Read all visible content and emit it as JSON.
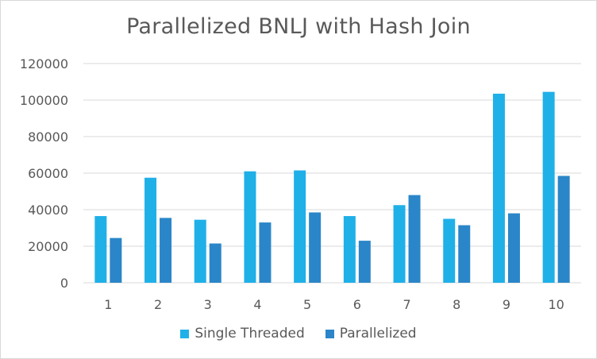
{
  "chart_data": {
    "type": "bar",
    "title": "Parallelized BNLJ with Hash Join",
    "xlabel": "",
    "ylabel": "",
    "categories": [
      "1",
      "2",
      "3",
      "4",
      "5",
      "6",
      "7",
      "8",
      "9",
      "10"
    ],
    "series": [
      {
        "name": "Single Threaded",
        "color": "#1fb0e8",
        "values": [
          36500,
          57500,
          34500,
          61000,
          61500,
          36500,
          42500,
          35000,
          103500,
          104500
        ]
      },
      {
        "name": "Parallelized",
        "color": "#2a86c8",
        "values": [
          24500,
          35500,
          21500,
          33000,
          38500,
          23000,
          48000,
          31500,
          38000,
          58500
        ]
      }
    ],
    "ylim": [
      0,
      120000
    ],
    "yticks": [
      "0",
      "20000",
      "40000",
      "60000",
      "80000",
      "100000",
      "120000"
    ],
    "grid": true,
    "legend_position": "bottom"
  }
}
